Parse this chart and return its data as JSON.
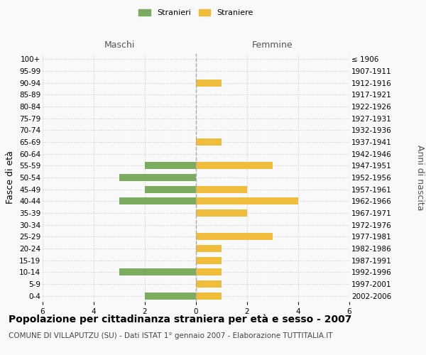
{
  "age_groups": [
    "100+",
    "95-99",
    "90-94",
    "85-89",
    "80-84",
    "75-79",
    "70-74",
    "65-69",
    "60-64",
    "55-59",
    "50-54",
    "45-49",
    "40-44",
    "35-39",
    "30-34",
    "25-29",
    "20-24",
    "15-19",
    "10-14",
    "5-9",
    "0-4"
  ],
  "birth_years": [
    "≤ 1906",
    "1907-1911",
    "1912-1916",
    "1917-1921",
    "1922-1926",
    "1927-1931",
    "1932-1936",
    "1937-1941",
    "1942-1946",
    "1947-1951",
    "1952-1956",
    "1957-1961",
    "1962-1966",
    "1967-1971",
    "1972-1976",
    "1977-1981",
    "1982-1986",
    "1987-1991",
    "1992-1996",
    "1997-2001",
    "2002-2006"
  ],
  "maschi_stranieri": [
    0,
    0,
    0,
    0,
    0,
    0,
    0,
    0,
    0,
    2,
    3,
    2,
    3,
    0,
    0,
    0,
    0,
    0,
    3,
    0,
    2
  ],
  "femmine_straniere": [
    0,
    0,
    1,
    0,
    0,
    0,
    0,
    1,
    0,
    3,
    0,
    2,
    4,
    2,
    0,
    3,
    1,
    1,
    1,
    1,
    1
  ],
  "color_maschi": "#7aab5e",
  "color_femmine": "#f0bc3c",
  "xlim": 6,
  "title": "Popolazione per cittadinanza straniera per età e sesso - 2007",
  "subtitle": "COMUNE DI VILLAPUTZU (SU) - Dati ISTAT 1° gennaio 2007 - Elaborazione TUTTITALIA.IT",
  "ylabel_left": "Fasce di età",
  "ylabel_right": "Anni di nascita",
  "xlabel_maschi": "Maschi",
  "xlabel_femmine": "Femmine",
  "legend_stranieri": "Stranieri",
  "legend_straniere": "Straniere",
  "bg_color": "#f9f9f9",
  "grid_color": "#cccccc",
  "title_fontsize": 10,
  "subtitle_fontsize": 7.5,
  "tick_fontsize": 7.5,
  "label_fontsize": 9
}
